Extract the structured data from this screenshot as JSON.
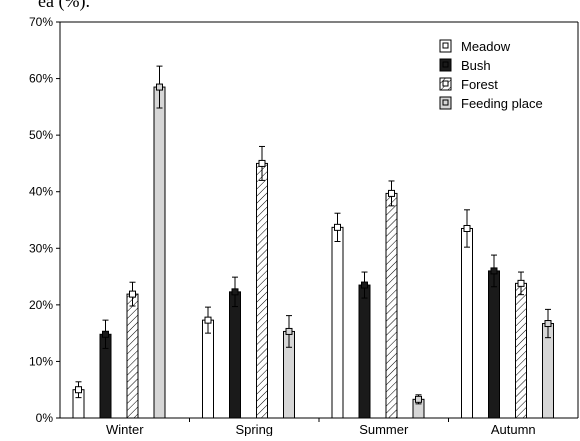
{
  "header_fragment": "ea (%).",
  "chart_data": {
    "type": "bar",
    "title": "",
    "xlabel": "",
    "ylabel": "",
    "categories": [
      "Winter",
      "Spring",
      "Summer",
      "Autumn"
    ],
    "ylim": [
      0,
      70
    ],
    "yticks": [
      "0%",
      "10%",
      "20%",
      "30%",
      "40%",
      "50%",
      "60%",
      "70%"
    ],
    "grid": false,
    "legend_position": "top-right",
    "series": [
      {
        "name": "Meadow",
        "values": [
          5,
          17.3,
          33.7,
          33.5
        ],
        "errors": [
          1.4,
          2.3,
          2.5,
          3.3
        ],
        "fill": "#ffffff",
        "pattern": "none"
      },
      {
        "name": "Bush",
        "values": [
          14.8,
          22.3,
          23.5,
          26
        ],
        "errors": [
          2.5,
          2.6,
          2.3,
          2.8
        ],
        "fill": "#1a1a1a",
        "pattern": "none"
      },
      {
        "name": "Forest",
        "values": [
          21.9,
          45,
          39.7,
          23.8
        ],
        "errors": [
          2.1,
          3.0,
          2.2,
          2.0
        ],
        "fill": "#ffffff",
        "pattern": "hatch"
      },
      {
        "name": "Feeding place",
        "values": [
          58.5,
          15.3,
          3.3,
          16.7
        ],
        "errors": [
          3.7,
          2.8,
          0.8,
          2.5
        ],
        "fill": "#d6d6d6",
        "pattern": "none"
      }
    ]
  }
}
